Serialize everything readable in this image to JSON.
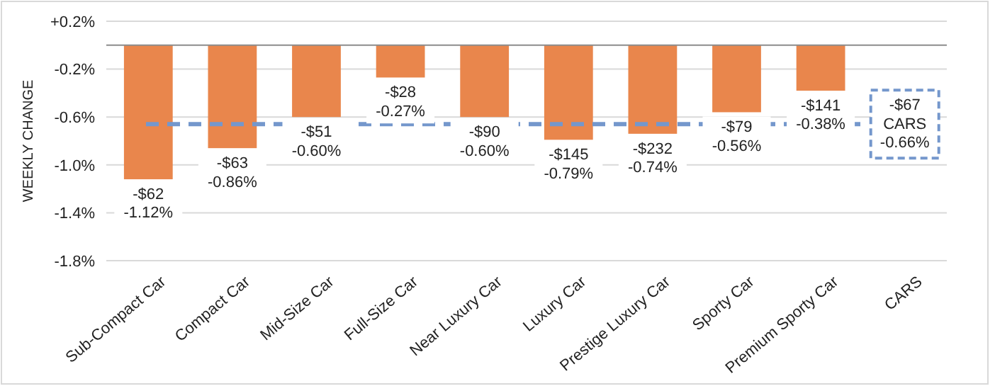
{
  "chart_data": {
    "type": "bar",
    "ylabel": "WEEKLY CHANGE",
    "categories": [
      "Sub-Compact Car",
      "Compact Car",
      "Mid-Size Car",
      "Full-Size Car",
      "Near Luxury Car",
      "Luxury Car",
      "Prestige Luxury Car",
      "Sporty Car",
      "Premium Sporty Car",
      "CARS"
    ],
    "values": [
      -1.12,
      -0.86,
      -0.6,
      -0.27,
      -0.6,
      -0.79,
      -0.74,
      -0.56,
      -0.38,
      null
    ],
    "value_labels": [
      "-$62\n-1.12%",
      "-$63\n-0.86%",
      "-$51\n-0.60%",
      "-$28\n-0.27%",
      "-$90\n-0.60%",
      "-$145\n-0.79%",
      "-$232\n-0.74%",
      "-$79\n-0.56%",
      "-$141\n-0.38%",
      null
    ],
    "color": "#e9864c",
    "ylim": [
      -1.8,
      0.2
    ],
    "yticks": [
      {
        "value": 0.2,
        "label": "+0.2%"
      },
      {
        "value": -0.2,
        "label": "-0.2%"
      },
      {
        "value": -0.6,
        "label": "-0.6%"
      },
      {
        "value": -1.0,
        "label": "-1.0%"
      },
      {
        "value": -1.4,
        "label": "-1.4%"
      },
      {
        "value": -1.8,
        "label": "-1.8%"
      }
    ],
    "grid": "y",
    "ref_lines": [
      {
        "axis": "y",
        "value": -0.66,
        "label": "-$67\nCARS\n-0.66%",
        "color": "#7497cc",
        "line_style": "dashed"
      }
    ]
  }
}
